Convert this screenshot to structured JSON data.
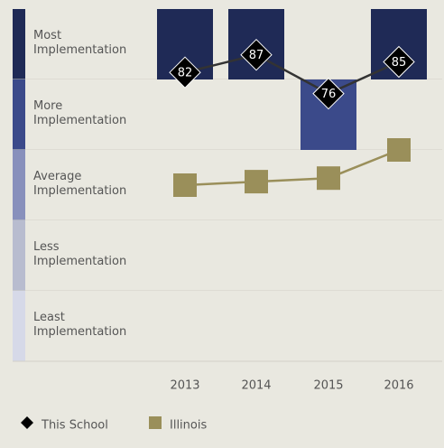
{
  "chart_data": {
    "type": "line",
    "categories": [
      "2013",
      "2014",
      "2015",
      "2016"
    ],
    "ylim": [
      0,
      100
    ],
    "bands": [
      {
        "label": "Most Implementation",
        "range": [
          80,
          100
        ],
        "color": "#1f2a56"
      },
      {
        "label": "More Implementation",
        "range": [
          60,
          80
        ],
        "color": "#3b4a8a"
      },
      {
        "label": "Average Implementation",
        "range": [
          40,
          60
        ],
        "color": "#8890bc"
      },
      {
        "label": "Less Implementation",
        "range": [
          20,
          40
        ],
        "color": "#b8bccf"
      },
      {
        "label": "Least Implementation",
        "range": [
          0,
          20
        ],
        "color": "#d6d9e8"
      }
    ],
    "series": [
      {
        "name": "This School",
        "color": "#333333",
        "marker": "diamond",
        "values": [
          82,
          87,
          76,
          85
        ]
      },
      {
        "name": "Illinois",
        "color": "#9a8f5a",
        "marker": "square",
        "values": [
          50,
          51,
          52,
          60
        ]
      }
    ]
  }
}
